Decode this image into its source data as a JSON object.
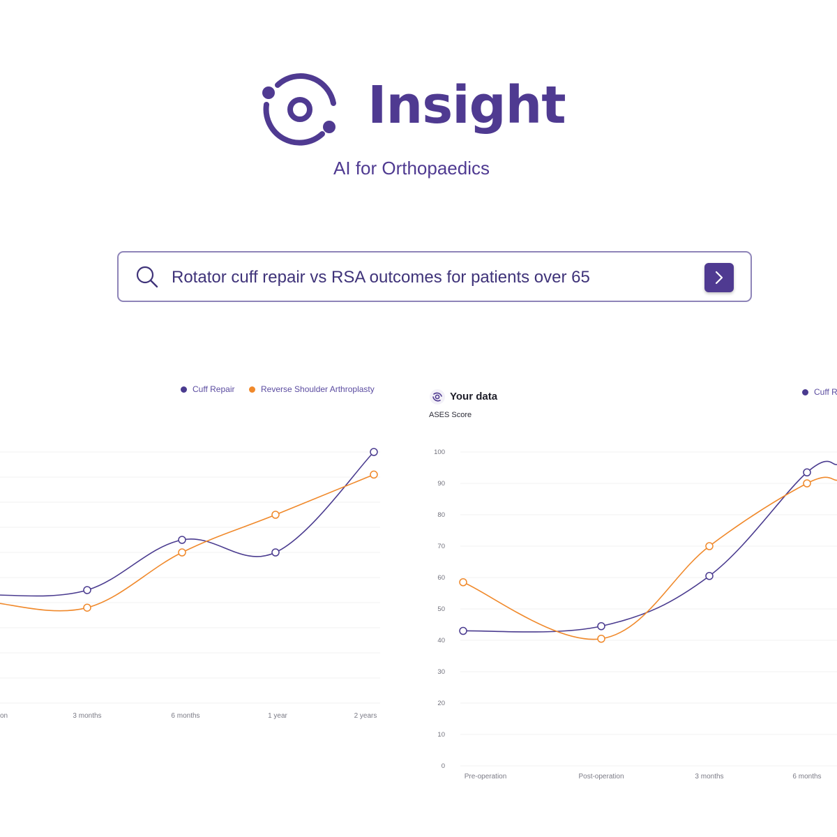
{
  "brand": {
    "name": "Insight",
    "tagline": "AI for Orthopaedics",
    "color": "#4f3a91"
  },
  "search": {
    "value": "Rotator cuff repair vs RSA outcomes for patients over 65",
    "icon": "search-icon",
    "submit_icon": "chevron-right-icon"
  },
  "colors": {
    "cuff_repair": "#4a3b8f",
    "rsa": "#f0892b"
  },
  "left_chart": {
    "legend": [
      "Cuff Repair",
      "Reverse Shoulder Arthroplasty"
    ],
    "x_labels": [
      "on",
      "3 months",
      "6 months",
      "1 year",
      "2 years"
    ]
  },
  "right_chart": {
    "title": "Your data",
    "ylabel": "ASES Score",
    "legend_partial": "Cuff R",
    "x_labels": [
      "Pre-operation",
      "Post-operation",
      "3 months",
      "6 months"
    ],
    "y_ticks": [
      "100",
      "90",
      "80",
      "70",
      "60",
      "50",
      "40",
      "30",
      "20",
      "10",
      "0"
    ]
  },
  "chart_data": [
    {
      "type": "line",
      "title": "",
      "categories": [
        "Post-operation",
        "3 months",
        "6 months",
        "1 year",
        "2 years"
      ],
      "series": [
        {
          "name": "Cuff Repair",
          "values": [
            43,
            45,
            65,
            60,
            100
          ]
        },
        {
          "name": "Reverse Shoulder Arthroplasty",
          "values": [
            40,
            38,
            60,
            75,
            91
          ]
        }
      ],
      "ylim": [
        0,
        100
      ],
      "grid": true,
      "legend": "top-right"
    },
    {
      "type": "line",
      "title": "Your data",
      "ylabel": "ASES Score",
      "categories": [
        "Pre-operation",
        "Post-operation",
        "3 months",
        "6 months"
      ],
      "series": [
        {
          "name": "Cuff Repair",
          "values": [
            43,
            44.5,
            60.5,
            93.5
          ]
        },
        {
          "name": "",
          "values": [
            58.5,
            40.5,
            70,
            90
          ]
        }
      ],
      "ylim": [
        0,
        100
      ],
      "grid": true,
      "legend": "top-right"
    }
  ]
}
